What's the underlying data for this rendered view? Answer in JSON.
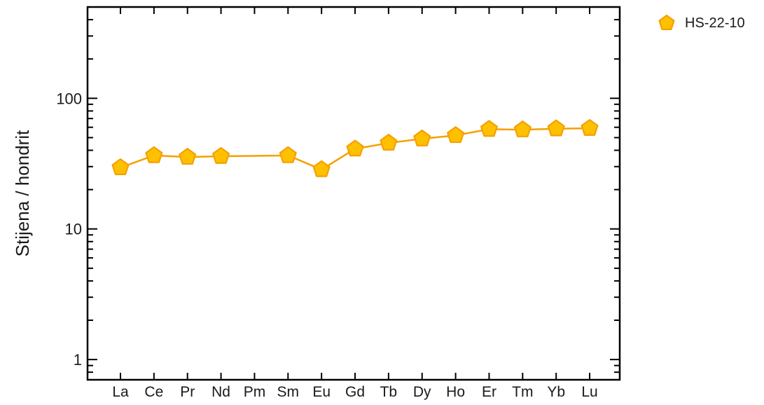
{
  "chart_data": {
    "type": "line",
    "title": "",
    "xlabel": "",
    "ylabel": "Stijena / hondrit",
    "y_scale": "log",
    "ylim": [
      0.7,
      500
    ],
    "yticks": [
      {
        "value": 1,
        "label": "1"
      },
      {
        "value": 10,
        "label": "10"
      },
      {
        "value": 100,
        "label": "100"
      }
    ],
    "categories": [
      "La",
      "Ce",
      "Pr",
      "Nd",
      "Pm",
      "Sm",
      "Eu",
      "Gd",
      "Tb",
      "Dy",
      "Ho",
      "Er",
      "Tm",
      "Yb",
      "Lu"
    ],
    "series": [
      {
        "name": "HS-22-10",
        "color": "#f5a000",
        "fill": "#ffc000",
        "marker": "pentagon",
        "values": [
          29.5,
          36.5,
          35.5,
          36,
          null,
          36.5,
          28.5,
          41,
          45.5,
          49,
          52,
          58,
          57.5,
          58.5,
          59
        ]
      }
    ],
    "legend": "top-right",
    "grid": false
  }
}
